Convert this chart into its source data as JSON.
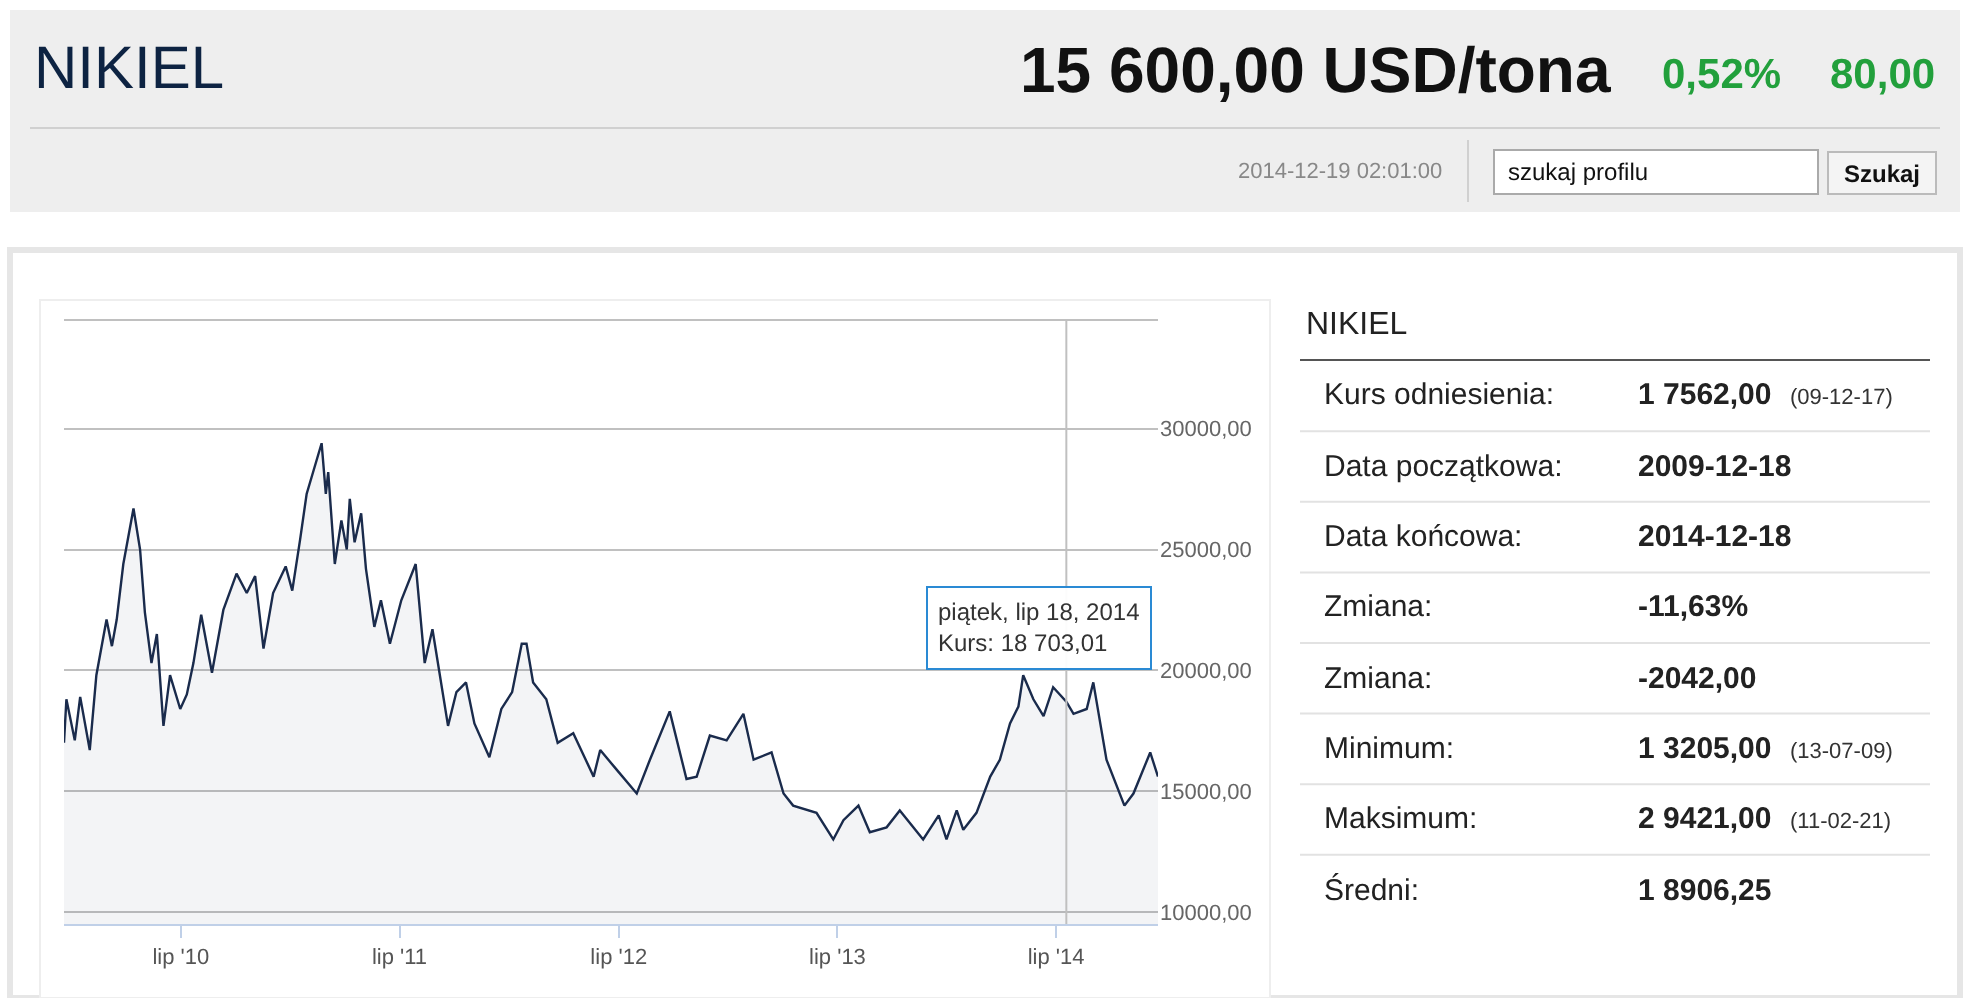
{
  "chart_data": [
    {
      "type": "other",
      "title": "NIKIEL",
      "annotations": [
        "15 600,00 USD/tona",
        "0,52%",
        "80,00",
        "2014-12-19 02:01:00",
        "szukaj profilu",
        "Szukaj"
      ]
    },
    {
      "type": "area",
      "x": [
        "2009-12-18",
        "2009-12-22",
        "2010-01-05",
        "2010-01-14",
        "2010-01-30",
        "2010-02-10",
        "2010-02-27",
        "2010-03-08",
        "2010-03-16",
        "2010-03-27",
        "2010-04-13",
        "2010-04-24",
        "2010-05-02",
        "2010-05-13",
        "2010-05-22",
        "2010-06-02",
        "2010-06-13",
        "2010-06-30",
        "2010-07-11",
        "2010-07-22",
        "2010-08-04",
        "2010-08-22",
        "2010-09-10",
        "2010-10-02",
        "2010-10-19",
        "2010-11-02",
        "2010-11-16",
        "2010-12-02",
        "2010-12-23",
        "2011-01-03",
        "2011-01-16",
        "2011-01-27",
        "2011-02-21",
        "2011-02-28",
        "2011-03-04",
        "2011-03-15",
        "2011-03-26",
        "2011-04-04",
        "2011-04-09",
        "2011-04-17",
        "2011-04-28",
        "2011-05-06",
        "2011-05-20",
        "2011-05-31",
        "2011-06-15",
        "2011-07-04",
        "2011-07-28",
        "2011-08-12",
        "2011-08-25",
        "2011-09-20",
        "2011-10-04",
        "2011-10-20",
        "2011-11-03",
        "2011-11-28",
        "2011-12-18",
        "2012-01-05",
        "2012-01-21",
        "2012-01-29",
        "2012-02-09",
        "2012-03-02",
        "2012-03-21",
        "2012-04-16",
        "2012-05-20",
        "2012-05-31",
        "2012-06-27",
        "2012-07-31",
        "2012-08-22",
        "2012-09-24",
        "2012-10-22",
        "2012-11-08",
        "2012-11-30",
        "2012-12-28",
        "2013-01-25",
        "2013-02-11",
        "2013-03-13",
        "2013-04-02",
        "2013-04-18",
        "2013-05-27",
        "2013-06-24",
        "2013-07-11",
        "2013-08-05",
        "2013-08-24",
        "2013-09-21",
        "2013-10-13",
        "2013-11-21",
        "2013-12-17",
        "2013-12-30",
        "2014-01-16",
        "2014-01-27",
        "2014-02-18",
        "2014-03-13",
        "2014-03-29",
        "2014-04-15",
        "2014-04-29",
        "2014-05-07",
        "2014-05-24",
        "2014-06-10",
        "2014-06-26",
        "2014-07-18",
        "2014-07-30",
        "2014-08-21",
        "2014-09-01",
        "2014-09-23",
        "2014-10-23",
        "2014-11-07",
        "2014-12-05",
        "2014-12-18"
      ],
      "series": [
        {
          "color": "#1a2b4c",
          "values": [
            17000,
            18800,
            17100,
            18900,
            16700,
            19800,
            22100,
            21000,
            22100,
            24400,
            26700,
            25000,
            22400,
            20300,
            21500,
            17700,
            19800,
            18400,
            19000,
            20300,
            22300,
            19900,
            22500,
            24000,
            23200,
            23900,
            20900,
            23200,
            24300,
            23300,
            25400,
            27300,
            29400,
            27300,
            28200,
            24400,
            26200,
            25000,
            27100,
            25300,
            26500,
            24200,
            21800,
            22900,
            21100,
            22900,
            24400,
            20300,
            21700,
            17700,
            19100,
            19500,
            17800,
            16400,
            18400,
            19100,
            21100,
            21100,
            19500,
            18800,
            17000,
            17400,
            15600,
            16700,
            15900,
            14900,
            16300,
            18300,
            15500,
            15600,
            17300,
            17100,
            18200,
            16300,
            16600,
            14900,
            14400,
            14100,
            13000,
            13800,
            14400,
            13300,
            13500,
            14200,
            13000,
            14000,
            13000,
            14200,
            13400,
            14100,
            15600,
            16300,
            17800,
            18500,
            19800,
            18800,
            18100,
            19300,
            18700,
            18200,
            18400,
            19500,
            16300,
            14400,
            14900,
            16600,
            15600
          ]
        }
      ],
      "xlim": [
        "2009-12-18",
        "2014-12-18"
      ],
      "xticks": [
        {
          "value": "2010-07-01",
          "label": "lip '10"
        },
        {
          "value": "2011-07-01",
          "label": "lip '11"
        },
        {
          "value": "2012-07-01",
          "label": "lip '12"
        },
        {
          "value": "2013-07-01",
          "label": "lip '13"
        },
        {
          "value": "2014-07-01",
          "label": "lip '14"
        }
      ],
      "ylim": [
        9500,
        34500
      ],
      "yticks": [
        {
          "value": 10000,
          "label": "10000,00"
        },
        {
          "value": 15000,
          "label": "15000,00"
        },
        {
          "value": 20000,
          "label": "20000,00"
        },
        {
          "value": 25000,
          "label": "25000,00"
        },
        {
          "value": 30000,
          "label": "30000,00"
        }
      ],
      "grid": "y",
      "ref_lines": [
        {
          "axis": "x",
          "value": "2014-07-18",
          "color": "#c0c0c0"
        }
      ],
      "annotations": [
        {
          "text": "piątek, lip 18, 2014\nKurs: 18 703,01",
          "x": "2014-07-18",
          "y": 18703.01
        }
      ]
    },
    {
      "type": "other",
      "title": "NIKIEL",
      "y_categories": [
        "Kurs odniesienia:",
        "Data początkowa:",
        "Data końcowa:",
        "Zmiana:",
        "Zmiana:",
        "Minimum:",
        "Maksimum:",
        "Średni:"
      ],
      "cell_labels": [
        [
          "1 7562,00",
          "(09-12-17)"
        ],
        [
          "2009-12-18",
          null
        ],
        [
          "2014-12-18",
          null
        ],
        [
          "-11,63%",
          null
        ],
        [
          "-2042,00",
          null
        ],
        [
          "1 3205,00",
          "(13-07-09)"
        ],
        [
          "2 9421,00",
          "(11-02-21)"
        ],
        [
          "1 8906,25",
          null
        ]
      ]
    }
  ]
}
